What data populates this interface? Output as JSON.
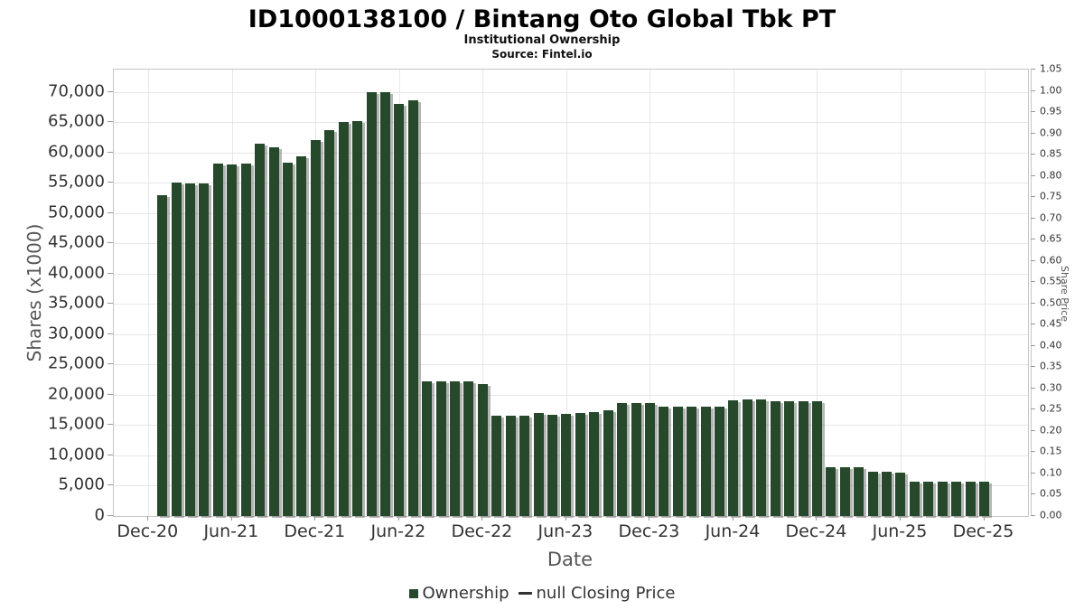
{
  "header": {
    "title": "ID1000138100 / Bintang Oto Global Tbk PT",
    "subtitle": "Institutional Ownership",
    "source": "Source: Fintel.io"
  },
  "colors": {
    "bar_green": "#25492a",
    "legend_line": "#333333",
    "gridline": "#e7e7e7",
    "axis_border": "#c6c6c6",
    "tick_text": "#333333",
    "axis_title_text": "#555555"
  },
  "chart_data": {
    "type": "bar",
    "title": "ID1000138100 / Bintang Oto Global Tbk PT",
    "subtitle": "Institutional Ownership",
    "source": "Source: Fintel.io",
    "xlabel": "Date",
    "ylabel_left": "Shares (x1000)",
    "ylabel_right": "Share Price",
    "grid": true,
    "legend_position": "bottom-center",
    "x_tick_labels": [
      "Dec-20",
      "Jun-21",
      "Dec-21",
      "Jun-22",
      "Dec-22",
      "Jun-23",
      "Dec-23",
      "Jun-24",
      "Dec-24",
      "Jun-25",
      "Dec-25"
    ],
    "y_left_tick_labels": [
      "0",
      "5,000",
      "10,000",
      "15,000",
      "20,000",
      "25,000",
      "30,000",
      "35,000",
      "40,000",
      "45,000",
      "50,000",
      "55,000",
      "60,000",
      "65,000",
      "70,000"
    ],
    "y_left_axis": {
      "min": 0,
      "tick_step": 5000,
      "tick_max": 70000,
      "plot_top_value": 73700
    },
    "y_right_tick_labels": [
      "0.00",
      "0.05",
      "0.10",
      "0.15",
      "0.20",
      "0.25",
      "0.30",
      "0.35",
      "0.40",
      "0.45",
      "0.50",
      "0.55",
      "0.60",
      "0.65",
      "0.70",
      "0.75",
      "0.80",
      "0.85",
      "0.90",
      "0.95",
      "1.00",
      "1.05"
    ],
    "y_right_axis": {
      "min": 0,
      "max": 1.05,
      "tick_step": 0.05
    },
    "categories": [
      "Jan-21",
      "Feb-21",
      "Mar-21",
      "Apr-21",
      "May-21",
      "Jun-21",
      "Jul-21",
      "Aug-21",
      "Sep-21",
      "Oct-21",
      "Nov-21",
      "Dec-21",
      "Jan-22",
      "Feb-22",
      "Mar-22",
      "Apr-22",
      "May-22",
      "Jun-22",
      "Jul-22",
      "Aug-22",
      "Sep-22",
      "Oct-22",
      "Nov-22",
      "Dec-22",
      "Jan-23",
      "Feb-23",
      "Mar-23",
      "Apr-23",
      "May-23",
      "Jun-23",
      "Jul-23",
      "Aug-23",
      "Sep-23",
      "Oct-23",
      "Nov-23",
      "Dec-23",
      "Jan-24",
      "Feb-24",
      "Mar-24",
      "Apr-24",
      "May-24",
      "Jun-24",
      "Jul-24",
      "Aug-24",
      "Sep-24",
      "Oct-24",
      "Nov-24",
      "Dec-24",
      "Jan-25",
      "Feb-25",
      "Mar-25",
      "Apr-25",
      "May-25",
      "Jun-25",
      "Jul-25",
      "Aug-25",
      "Sep-25",
      "Oct-25",
      "Nov-25",
      "Dec-25"
    ],
    "series": [
      {
        "name": "Ownership",
        "color": "#25492a",
        "values": [
          53000,
          55000,
          54900,
          54900,
          58200,
          58100,
          58200,
          61400,
          60800,
          58300,
          59400,
          62000,
          63700,
          65100,
          65200,
          70000,
          70000,
          68100,
          68600,
          22200,
          22200,
          22300,
          22300,
          21800,
          16500,
          16500,
          16500,
          17000,
          16700,
          16900,
          17000,
          17100,
          17500,
          18700,
          18700,
          18700,
          18100,
          18100,
          18100,
          18100,
          18100,
          19100,
          19200,
          19200,
          19000,
          19000,
          19000,
          19000,
          8000,
          8000,
          8000,
          7300,
          7300,
          7200,
          5600,
          5600,
          5600,
          5600,
          5600,
          5600
        ]
      },
      {
        "name": "null Closing Price",
        "color": "#333333",
        "values": []
      }
    ],
    "legend": [
      {
        "label": "Ownership",
        "marker": "square",
        "color": "#25492a"
      },
      {
        "label": "null Closing Price",
        "marker": "line",
        "color": "#333333"
      }
    ]
  }
}
